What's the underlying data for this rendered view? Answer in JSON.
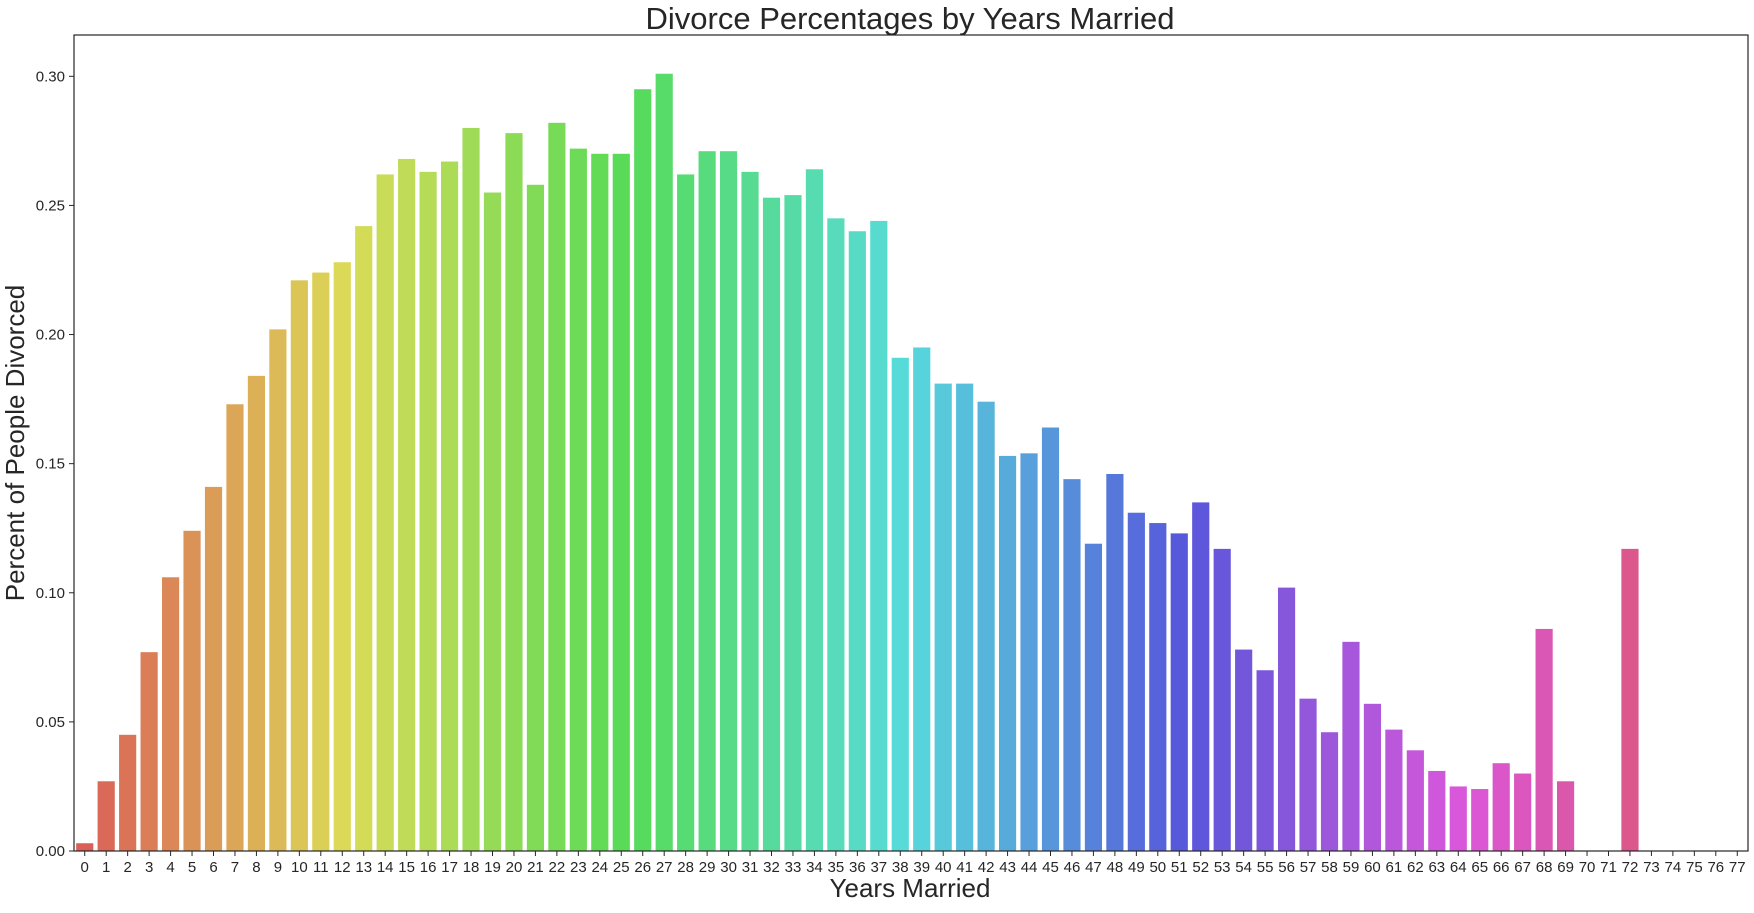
{
  "chart_data": {
    "type": "bar",
    "title": "Divorce Percentages by Years Married",
    "xlabel": "Years Married",
    "ylabel": "Percent of People Divorced",
    "ylim": [
      0,
      0.316
    ],
    "yticks": [
      "0.00",
      "0.05",
      "0.10",
      "0.15",
      "0.20",
      "0.25",
      "0.30"
    ],
    "grid": false,
    "categories": [
      "0",
      "1",
      "2",
      "3",
      "4",
      "5",
      "6",
      "7",
      "8",
      "9",
      "10",
      "11",
      "12",
      "13",
      "14",
      "15",
      "16",
      "17",
      "18",
      "19",
      "20",
      "21",
      "22",
      "23",
      "24",
      "25",
      "26",
      "27",
      "28",
      "29",
      "30",
      "31",
      "32",
      "33",
      "34",
      "35",
      "36",
      "37",
      "38",
      "39",
      "40",
      "41",
      "42",
      "43",
      "44",
      "45",
      "46",
      "47",
      "48",
      "49",
      "50",
      "51",
      "52",
      "53",
      "54",
      "55",
      "56",
      "57",
      "58",
      "59",
      "60",
      "61",
      "62",
      "63",
      "64",
      "65",
      "66",
      "67",
      "68",
      "69",
      "70",
      "71",
      "72",
      "73",
      "74",
      "75",
      "76",
      "77"
    ],
    "values": [
      0.003,
      0.027,
      0.045,
      0.077,
      0.106,
      0.124,
      0.141,
      0.173,
      0.184,
      0.202,
      0.221,
      0.224,
      0.228,
      0.242,
      0.262,
      0.268,
      0.263,
      0.267,
      0.28,
      0.255,
      0.278,
      0.258,
      0.282,
      0.272,
      0.27,
      0.27,
      0.295,
      0.301,
      0.262,
      0.271,
      0.271,
      0.263,
      0.253,
      0.254,
      0.264,
      0.245,
      0.24,
      0.244,
      0.191,
      0.195,
      0.181,
      0.181,
      0.174,
      0.153,
      0.154,
      0.164,
      0.144,
      0.119,
      0.146,
      0.131,
      0.127,
      0.123,
      0.135,
      0.117,
      0.078,
      0.07,
      0.102,
      0.059,
      0.046,
      0.081,
      0.057,
      0.047,
      0.039,
      0.031,
      0.025,
      0.024,
      0.034,
      0.03,
      0.086,
      0.027,
      0,
      0,
      0.117,
      0,
      0,
      0,
      0,
      0
    ]
  }
}
